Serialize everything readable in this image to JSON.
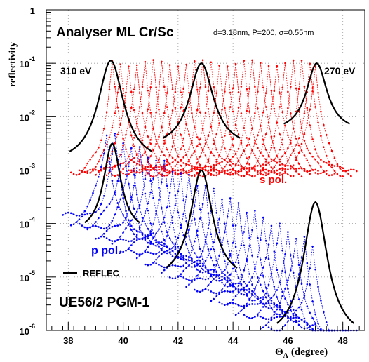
{
  "chart_data": {
    "type": "line",
    "title": "Analyser ML Cr/Sc",
    "subtitle": "d=3.18nm, P=200, σ=0.55nm",
    "xlabel_main": "Θ",
    "xlabel_sub": "A",
    "xlabel_unit": "(degree)",
    "ylabel": "reflectivity",
    "x_range": [
      37.2,
      48.8
    ],
    "y_range_log10": [
      -6,
      0
    ],
    "y_scale": "log",
    "x_ticks": [
      "38",
      "40",
      "42",
      "44",
      "46",
      "48"
    ],
    "y_ticks": [
      {
        "base": "10",
        "exp": "-6"
      },
      {
        "base": "10",
        "exp": "-5"
      },
      {
        "base": "10",
        "exp": "-4"
      },
      {
        "base": "10",
        "exp": "-3"
      },
      {
        "base": "10",
        "exp": "-2"
      },
      {
        "base": "10",
        "exp": "-1"
      },
      {
        "base": "1",
        "exp": ""
      }
    ],
    "grid": "dotted",
    "annotations": {
      "left_energy": "310 eV",
      "right_energy": "270 eV",
      "s_label": "s pol.",
      "p_label": "p pol.",
      "legend_reflec": "REFLEC",
      "beamline": "UE56/2 PGM-1"
    },
    "series": [
      {
        "name": "s pol.",
        "color": "#ff0000",
        "peak_positions": [
          39.6,
          39.9,
          40.2,
          40.5,
          40.8,
          41.1,
          41.4,
          41.7,
          42.0,
          42.3,
          42.6,
          42.9,
          43.2,
          43.5,
          43.8,
          44.1,
          44.4,
          44.7,
          45.0,
          45.3,
          45.6,
          45.9,
          46.2,
          46.5,
          46.8,
          47.0
        ],
        "peak_log10": -1.0,
        "width_deg": 0.5,
        "floor_log10": -3.1
      },
      {
        "name": "p pol.",
        "color": "#0000ff",
        "peak_positions": [
          39.4,
          39.7,
          40.0,
          40.3,
          40.6,
          40.9,
          41.2,
          41.5,
          41.8,
          42.1,
          42.4,
          42.7,
          43.0,
          43.3,
          43.6,
          43.9,
          44.2,
          44.5,
          44.8,
          45.1,
          45.4,
          45.7,
          46.0,
          46.3,
          46.6,
          46.9
        ],
        "peak_log10_start": -2.3,
        "peak_log10_end": -4.4,
        "width_deg": 0.5
      },
      {
        "name": "REFLEC",
        "color": "#000000",
        "curves": [
          {
            "pol": "s",
            "center": 39.55,
            "peak_log10": -0.95,
            "halfspan": 1.5,
            "floor_log10": -2.9
          },
          {
            "pol": "s",
            "center": 42.85,
            "peak_log10": -1.0,
            "halfspan": 1.4,
            "floor_log10": -2.6
          },
          {
            "pol": "s",
            "center": 47.05,
            "peak_log10": -1.0,
            "halfspan": 1.2,
            "floor_log10": -2.3
          },
          {
            "pol": "p",
            "center": 39.6,
            "peak_log10": -2.5,
            "halfspan": 1.0,
            "floor_log10": -4.2
          },
          {
            "pol": "p",
            "center": 42.85,
            "peak_log10": -3.0,
            "halfspan": 1.3,
            "floor_log10": -5.1
          },
          {
            "pol": "p",
            "center": 47.0,
            "peak_log10": -3.6,
            "halfspan": 1.4,
            "floor_log10": -6.2
          }
        ]
      }
    ]
  }
}
